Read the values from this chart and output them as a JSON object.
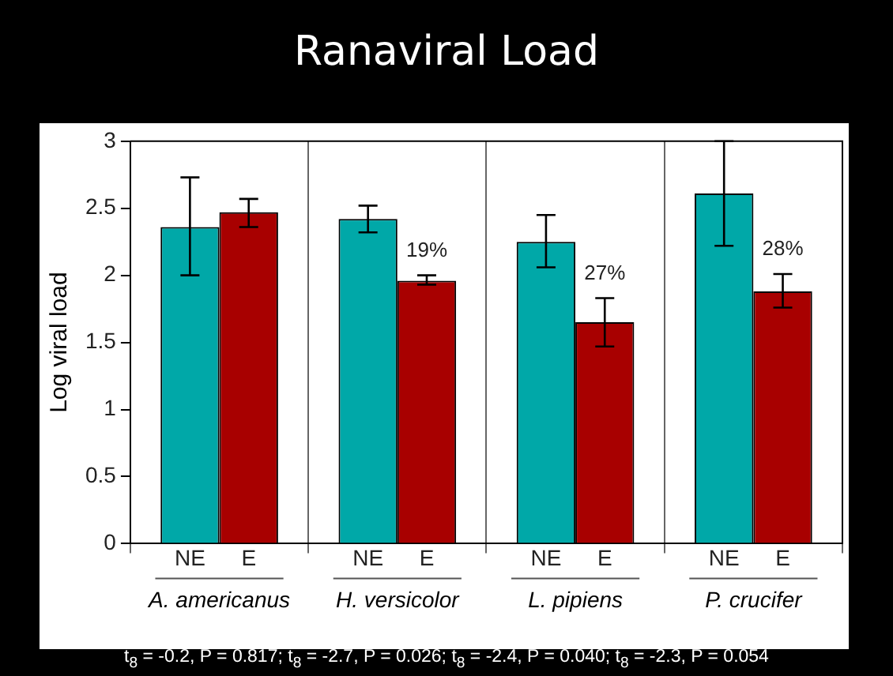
{
  "chart_data": {
    "type": "bar",
    "title": "Ranaviral Load",
    "ylabel": "Log viral load",
    "categories": [
      "A. americanus",
      "H. versicolor",
      "L. pipiens",
      "P. crucifer"
    ],
    "series": [
      {
        "name": "NE",
        "color": "#00a8a8",
        "values": [
          2.36,
          2.42,
          2.25,
          2.61
        ],
        "errors": [
          [
            2.0,
            2.73
          ],
          [
            2.32,
            2.52
          ],
          [
            2.06,
            2.45
          ],
          [
            2.22,
            3.0
          ]
        ]
      },
      {
        "name": "E",
        "color": "#a80000",
        "values": [
          2.47,
          1.96,
          1.65,
          1.88
        ],
        "errors": [
          [
            2.36,
            2.57
          ],
          [
            1.93,
            2.0
          ],
          [
            1.47,
            1.83
          ],
          [
            1.76,
            2.01
          ]
        ]
      }
    ],
    "ylim": [
      0,
      3
    ],
    "yticks": [
      0,
      0.5,
      1,
      1.5,
      2,
      2.5,
      3
    ],
    "grid": "x",
    "legend": false,
    "annotations": [
      {
        "text": "19%",
        "x": "H. versicolor",
        "y": 2.0
      },
      {
        "text": "27%",
        "x": "L. pipiens",
        "y": 1.83
      },
      {
        "text": "28%",
        "x": "P. crucifer",
        "y": 2.01
      },
      "t$_{8}$ = -0.2, P = 0.817; t$_{8}$ = -2.7, P = 0.026; t$_{8}$ = -2.4, P = 0.040; t$_{8}$ = -2.3, P = 0.054"
    ]
  }
}
